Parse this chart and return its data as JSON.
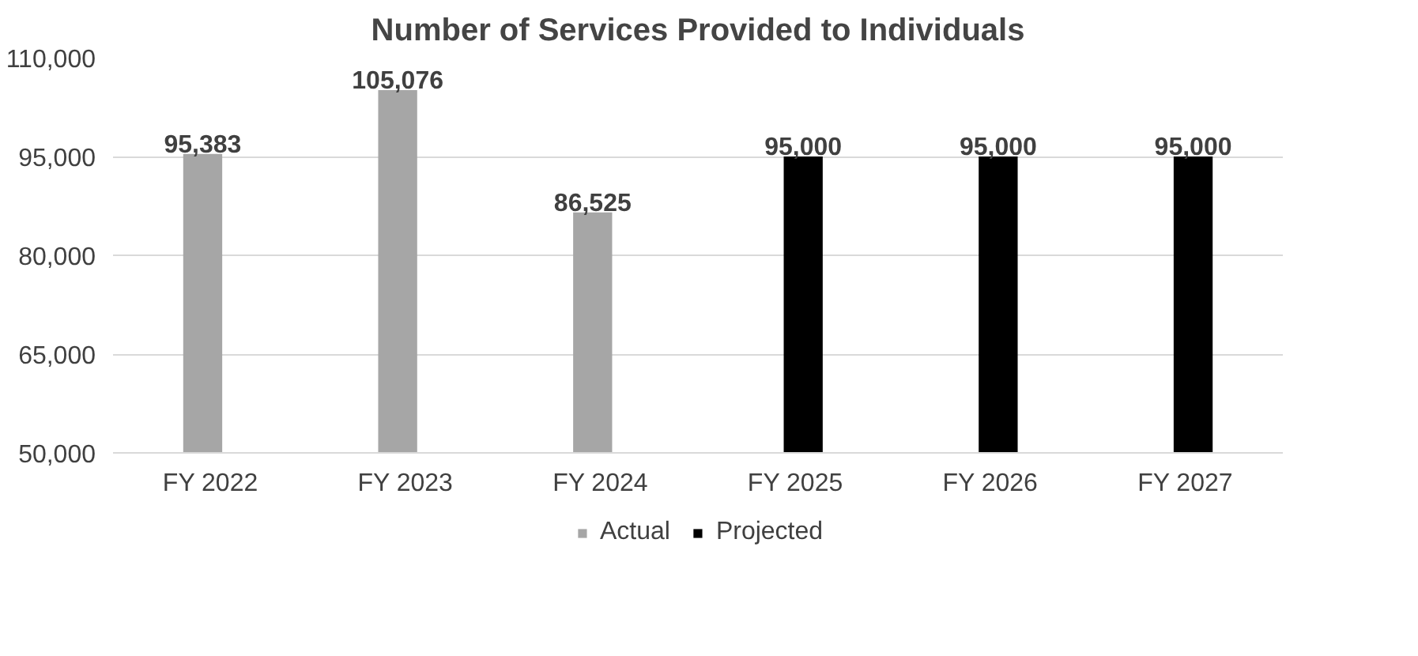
{
  "chart_data": {
    "type": "bar",
    "title": "Number of Services Provided to Individuals",
    "categories": [
      "FY 2022",
      "FY 2023",
      "FY 2024",
      "FY 2025",
      "FY 2026",
      "FY 2027"
    ],
    "series": [
      {
        "name": "Actual",
        "color": "#a6a6a6",
        "values": [
          95383,
          105076,
          86525,
          null,
          null,
          null
        ],
        "value_labels": [
          "95,383",
          "105,076",
          "86,525",
          null,
          null,
          null
        ]
      },
      {
        "name": "Projected",
        "color": "#000000",
        "values": [
          null,
          null,
          null,
          95000,
          95000,
          95000
        ],
        "value_labels": [
          null,
          null,
          null,
          "95,000",
          "95,000",
          "95,000"
        ]
      }
    ],
    "ylim": [
      50000,
      110000
    ],
    "yticks": [
      {
        "value": 50000,
        "label": "50,000"
      },
      {
        "value": 65000,
        "label": "65,000"
      },
      {
        "value": 80000,
        "label": "80,000"
      },
      {
        "value": 95000,
        "label": "95,000"
      },
      {
        "value": 110000,
        "label": "110,000"
      }
    ],
    "grid": "y",
    "legend": "bottom"
  }
}
